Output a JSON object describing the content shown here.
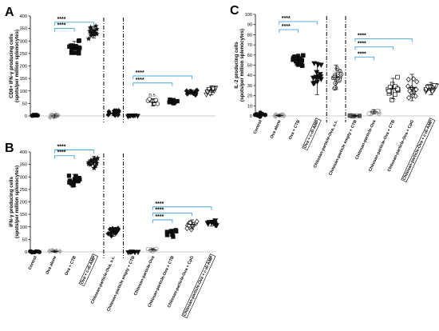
{
  "chart_data": [
    {
      "panel": "A",
      "type": "scatter",
      "ylabel_lines": [
        "CD8+ IFN-γ producing cells",
        "(spots/per million splenocytes)"
      ],
      "ylim": [
        0,
        400
      ],
      "yticks": [
        "0",
        "50",
        "100",
        "150",
        "200",
        "250",
        "300",
        "350",
        "400"
      ],
      "xlabels": [],
      "groups": [
        {
          "median": 2,
          "spread": 4,
          "n": 10,
          "marker": "circle",
          "color": "#111111"
        },
        {
          "median": 0,
          "spread": 7,
          "n": 12,
          "marker": "diamond",
          "color": "#aaaaaa"
        },
        {
          "median": 272,
          "spread": 26,
          "n": 20,
          "marker": "square",
          "color": "#111111"
        },
        {
          "median": 335,
          "spread": 23,
          "n": 16,
          "marker": "star",
          "color": "#111111"
        },
        {
          "median": 12,
          "spread": 10,
          "n": 16,
          "marker": "diamond",
          "color": "#111111"
        },
        {
          "median": 0,
          "spread": 3,
          "n": 8,
          "marker": "triangle-down",
          "color": "#111111"
        },
        {
          "median": 55,
          "spread": 14,
          "n": 12,
          "marker": "circle-open",
          "color": "#111111"
        },
        {
          "median": 58,
          "spread": 6,
          "n": 10,
          "marker": "square",
          "color": "#111111"
        },
        {
          "median": 95,
          "spread": 9,
          "n": 12,
          "marker": "diamond",
          "color": "#111111"
        },
        {
          "median": 102,
          "spread": 18,
          "n": 14,
          "marker": "triangle-down-open",
          "color": "#111111"
        }
      ],
      "dividers_after": [
        4,
        5
      ],
      "annotations": [
        {
          "text": "****",
          "from": 2,
          "to": 4,
          "y": 375,
          "color": "#4aa3df"
        },
        {
          "text": "****",
          "from": 2,
          "to": 3,
          "y": 350,
          "color": "#4aa3df"
        },
        {
          "text": "****",
          "from": 6,
          "to": 9,
          "y": 160,
          "color": "#4aa3df"
        },
        {
          "text": "****",
          "from": 6,
          "to": 8,
          "y": 132,
          "color": "#4aa3df"
        },
        {
          "text": "n.s.",
          "at": 7,
          "y": 78
        }
      ]
    },
    {
      "panel": "B",
      "type": "scatter",
      "ylabel_lines": [
        "IFN-γ producing cells",
        "(spots/per million splenocytes)"
      ],
      "ylim": [
        0,
        400
      ],
      "yticks": [
        "0",
        "50",
        "100",
        "150",
        "200",
        "250",
        "300",
        "350",
        "400"
      ],
      "xlabels": [
        "Control",
        "Ova alone",
        "Ova + CTB",
        "Ova + c-di-AMP",
        "Chitosan-particle-Ova, s.c.",
        "Chitosan-particle empty + CTB",
        "Chitosan-particle-Ova",
        "Chitosan-particle-Ova + CTB",
        "Chitosan-particle-Ova + CpG",
        "Chitosan-particle-Ova + c-di-AMP"
      ],
      "boxed_labels": [
        3,
        9
      ],
      "groups": [
        {
          "median": 0,
          "spread": 3,
          "n": 8,
          "marker": "circle",
          "color": "#111111"
        },
        {
          "median": 2,
          "spread": 4,
          "n": 8,
          "marker": "diamond",
          "color": "#aaaaaa"
        },
        {
          "median": 285,
          "spread": 25,
          "n": 20,
          "marker": "square",
          "color": "#111111"
        },
        {
          "median": 360,
          "spread": 22,
          "n": 14,
          "marker": "star",
          "color": "#111111"
        },
        {
          "median": 80,
          "spread": 18,
          "n": 14,
          "marker": "diamond",
          "color": "#111111"
        },
        {
          "median": 0,
          "spread": 3,
          "n": 8,
          "marker": "triangle-down",
          "color": "#111111"
        },
        {
          "median": 8,
          "spread": 5,
          "n": 12,
          "marker": "circle-open",
          "color": "#888888"
        },
        {
          "median": 75,
          "spread": 12,
          "n": 12,
          "marker": "square",
          "color": "#111111"
        },
        {
          "median": 110,
          "spread": 18,
          "n": 14,
          "marker": "diamond-open",
          "color": "#111111"
        },
        {
          "median": 115,
          "spread": 12,
          "n": 16,
          "marker": "triangle-down",
          "color": "#111111"
        }
      ],
      "dividers_after": [
        4,
        5
      ],
      "annotations": [
        {
          "text": "****",
          "from": 2,
          "to": 4,
          "y": 408,
          "color": "#4aa3df"
        },
        {
          "text": "****",
          "from": 2,
          "to": 3,
          "y": 385,
          "color": "#4aa3df"
        },
        {
          "text": "****",
          "from": 7,
          "to": 10,
          "y": 180,
          "color": "#4aa3df"
        },
        {
          "text": "****",
          "from": 7,
          "to": 9,
          "y": 155,
          "color": "#4aa3df"
        },
        {
          "text": "****",
          "from": 7,
          "to": 8,
          "y": 128,
          "color": "#4aa3df"
        }
      ]
    },
    {
      "panel": "C",
      "type": "scatter",
      "ylabel_lines": [
        "IL-2 producing cells",
        "(spots/per million splenocytes)"
      ],
      "ylim": [
        0,
        100
      ],
      "yticks": [
        "0",
        "10",
        "20",
        "30",
        "40",
        "50",
        "60",
        "70",
        "80",
        "90",
        "100"
      ],
      "xlabels": [
        "Control",
        "Ova alone",
        "Ova + CTB",
        "Ova + c-di-AMP",
        "Chitosan-particle-Ova, s.c.",
        "Chitosan-particle empty + CTB",
        "Chitosan-particle-Ova",
        "Chitosan-particle-Ova + CTB",
        "Chitosan-particle-Ova + CpG",
        "Chitosan-particle-Ova + c-di-AMP"
      ],
      "boxed_labels": [
        3,
        9
      ],
      "groups": [
        {
          "median": 1,
          "spread": 2,
          "n": 10,
          "marker": "circle",
          "color": "#111111"
        },
        {
          "median": 0.5,
          "spread": 1,
          "n": 8,
          "marker": "diamond",
          "color": "#aaaaaa"
        },
        {
          "median": 55,
          "spread": 6,
          "n": 20,
          "marker": "square",
          "color": "#111111"
        },
        {
          "median": 37,
          "spread": 16,
          "n": 16,
          "marker": "triangle-down",
          "color": "#111111"
        },
        {
          "median": 38,
          "spread": 12,
          "n": 18,
          "marker": "circle-dot",
          "color": "#111111"
        },
        {
          "median": 0,
          "spread": 0.5,
          "n": 6,
          "marker": "square",
          "color": "#555555"
        },
        {
          "median": 4,
          "spread": 2,
          "n": 12,
          "marker": "circle-open",
          "color": "#888888"
        },
        {
          "median": 27,
          "spread": 10,
          "n": 16,
          "marker": "square-open",
          "color": "#111111"
        },
        {
          "median": 28,
          "spread": 13,
          "n": 16,
          "marker": "diamond-open",
          "color": "#111111"
        },
        {
          "median": 27,
          "spread": 6,
          "n": 18,
          "marker": "triangle-down-open",
          "color": "#111111"
        }
      ],
      "dividers_after": [
        4,
        5
      ],
      "annotations": [
        {
          "text": "****",
          "from": 2,
          "to": 4,
          "y": 93,
          "color": "#4aa3df"
        },
        {
          "text": "****",
          "from": 2,
          "to": 3,
          "y": 85,
          "color": "#4aa3df"
        },
        {
          "text": "****",
          "from": 6,
          "to": 9,
          "y": 76,
          "color": "#4aa3df"
        },
        {
          "text": "****",
          "from": 6,
          "to": 8,
          "y": 68,
          "color": "#4aa3df"
        },
        {
          "text": "****",
          "from": 6,
          "to": 7,
          "y": 58,
          "color": "#4aa3df"
        }
      ]
    }
  ]
}
